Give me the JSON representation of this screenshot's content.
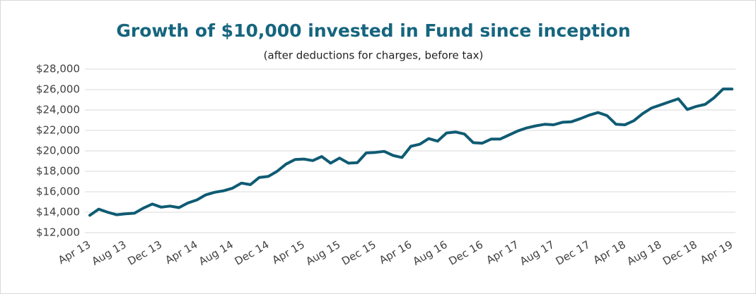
{
  "chart_data": {
    "type": "line",
    "title": "Growth of $10,000 invested in Fund since inception",
    "subtitle": "(after deductions for charges, before tax)",
    "categories": [
      "Apr 13",
      null,
      null,
      null,
      "Aug 13",
      null,
      null,
      null,
      "Dec 13",
      null,
      null,
      null,
      "Apr 14",
      null,
      null,
      null,
      "Aug 14",
      null,
      null,
      null,
      "Dec 14",
      null,
      null,
      null,
      "Apr 15",
      null,
      null,
      null,
      "Aug 15",
      null,
      null,
      null,
      "Dec 15",
      null,
      null,
      null,
      "Apr 16",
      null,
      null,
      null,
      "Aug 16",
      null,
      null,
      null,
      "Dec 16",
      null,
      null,
      null,
      "Apr 17",
      null,
      null,
      null,
      "Aug 17",
      null,
      null,
      null,
      "Dec 17",
      null,
      null,
      null,
      "Apr 18",
      null,
      null,
      null,
      "Aug 18",
      null,
      null,
      null,
      "Dec 18",
      null,
      null,
      null,
      "Apr 19"
    ],
    "series": [
      {
        "color": "#0f5b73",
        "values": [
          13700,
          14300,
          14000,
          13750,
          13850,
          13900,
          14400,
          14800,
          14500,
          14600,
          14450,
          14900,
          15200,
          15700,
          15950,
          16100,
          16350,
          16850,
          16700,
          17400,
          17500,
          18000,
          18700,
          19150,
          19200,
          19050,
          19450,
          18800,
          19300,
          18800,
          18850,
          19800,
          19850,
          19950,
          19550,
          19350,
          20450,
          20650,
          21200,
          20950,
          21750,
          21850,
          21650,
          20800,
          20750,
          21150,
          21150,
          21550,
          21950,
          22250,
          22450,
          22600,
          22550,
          22800,
          22850,
          23150,
          23500,
          23750,
          23450,
          22600,
          22550,
          22950,
          23650,
          24200,
          24500,
          24800,
          25100,
          24050,
          24350,
          24550,
          25200,
          26050,
          26050
        ]
      }
    ],
    "ylim": [
      12000,
      28000
    ],
    "yticks": [
      {
        "value": 12000,
        "label": "$12,000"
      },
      {
        "value": 14000,
        "label": "$14,000"
      },
      {
        "value": 16000,
        "label": "$16,000"
      },
      {
        "value": 18000,
        "label": "$18,000"
      },
      {
        "value": 20000,
        "label": "$20,000"
      },
      {
        "value": 22000,
        "label": "$22,000"
      },
      {
        "value": 24000,
        "label": "$24,000"
      },
      {
        "value": 26000,
        "label": "$26,000"
      },
      {
        "value": 28000,
        "label": "$28,000"
      }
    ],
    "grid": true
  }
}
